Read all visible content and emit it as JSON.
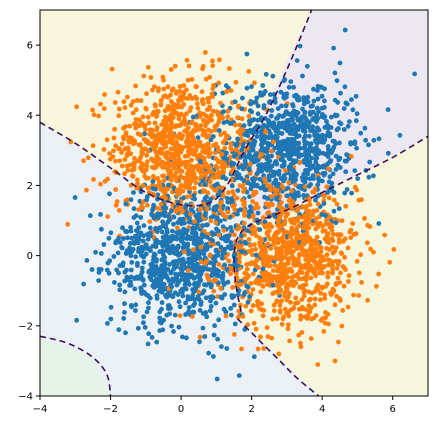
{
  "chart_data": {
    "type": "scatter",
    "title": "",
    "xlabel": "",
    "ylabel": "",
    "xlim": [
      -4,
      7
    ],
    "ylim": [
      -4,
      7
    ],
    "x_ticks": [
      -4,
      -2,
      0,
      2,
      4,
      6
    ],
    "y_ticks": [
      -4,
      -2,
      0,
      2,
      4,
      6
    ],
    "x_tick_labels": [
      "−4",
      "−2",
      "0",
      "2",
      "4",
      "6"
    ],
    "y_tick_labels": [
      "−4",
      "−2",
      "0",
      "2",
      "4",
      "6"
    ],
    "grid": false,
    "legend": "none",
    "background_contours": true,
    "series": [
      {
        "color": "#1f77b4",
        "clusters": [
          {
            "center": [
              0,
              0
            ],
            "sd": 1.0,
            "count": 900
          },
          {
            "center": [
              3,
              3
            ],
            "sd": 1.0,
            "count": 900
          }
        ],
        "points_sample": [
          [
            0.1,
            -0.2
          ],
          [
            -1.2,
            0.8
          ],
          [
            0.9,
            0.6
          ],
          [
            3.1,
            3.2
          ],
          [
            2.4,
            2.6
          ],
          [
            3.8,
            3.9
          ],
          [
            -0.3,
            -1.5
          ],
          [
            4.2,
            2.1
          ]
        ]
      },
      {
        "color": "#ff7f0e",
        "clusters": [
          {
            "center": [
              0,
              3
            ],
            "sd": 1.0,
            "count": 900
          },
          {
            "center": [
              3,
              0
            ],
            "sd": 1.0,
            "count": 900
          }
        ],
        "points_sample": [
          [
            0.0,
            3.1
          ],
          [
            -1.0,
            4.2
          ],
          [
            0.8,
            2.4
          ],
          [
            3.0,
            0.2
          ],
          [
            2.2,
            -0.8
          ],
          [
            4.1,
            0.9
          ],
          [
            -0.5,
            5.0
          ],
          [
            3.6,
            -1.7
          ]
        ]
      }
    ],
    "decision_boundary": {
      "color": "#3b0f5a",
      "style": "dashed",
      "curves": [
        [
          [
            -4.0,
            3.8
          ],
          [
            -3.0,
            3.2
          ],
          [
            -2.0,
            2.5
          ],
          [
            -1.0,
            1.8
          ],
          [
            0.0,
            1.45
          ],
          [
            0.8,
            1.5
          ],
          [
            1.3,
            2.0
          ],
          [
            1.8,
            3.0
          ],
          [
            2.4,
            4.0
          ],
          [
            3.0,
            5.3
          ],
          [
            3.5,
            6.5
          ],
          [
            3.7,
            7.0
          ]
        ],
        [
          [
            1.7,
            -1.6
          ],
          [
            1.55,
            -0.8
          ],
          [
            1.5,
            -0.1
          ],
          [
            1.6,
            0.5
          ],
          [
            2.0,
            0.9
          ],
          [
            3.0,
            1.3
          ],
          [
            4.0,
            1.8
          ],
          [
            5.0,
            2.3
          ],
          [
            6.0,
            2.8
          ],
          [
            7.0,
            3.4
          ]
        ],
        [
          [
            1.6,
            -1.8
          ],
          [
            2.1,
            -2.3
          ],
          [
            2.8,
            -3.0
          ],
          [
            3.3,
            -3.5
          ],
          [
            3.9,
            -4.0
          ]
        ],
        [
          [
            -4.0,
            -2.3
          ],
          [
            -3.2,
            -2.5
          ],
          [
            -2.5,
            -2.9
          ],
          [
            -2.1,
            -3.4
          ],
          [
            -2.0,
            -4.0
          ]
        ]
      ]
    },
    "contour_regions": [
      {
        "color": "#f8f6d9",
        "label": "top-left"
      },
      {
        "color": "#ece7f2",
        "label": "top-right"
      },
      {
        "color": "#eaf0f4",
        "label": "center"
      },
      {
        "color": "#f7f6da",
        "label": "bottom-right"
      },
      {
        "color": "#e6f3e8",
        "label": "bottom-left"
      }
    ]
  }
}
